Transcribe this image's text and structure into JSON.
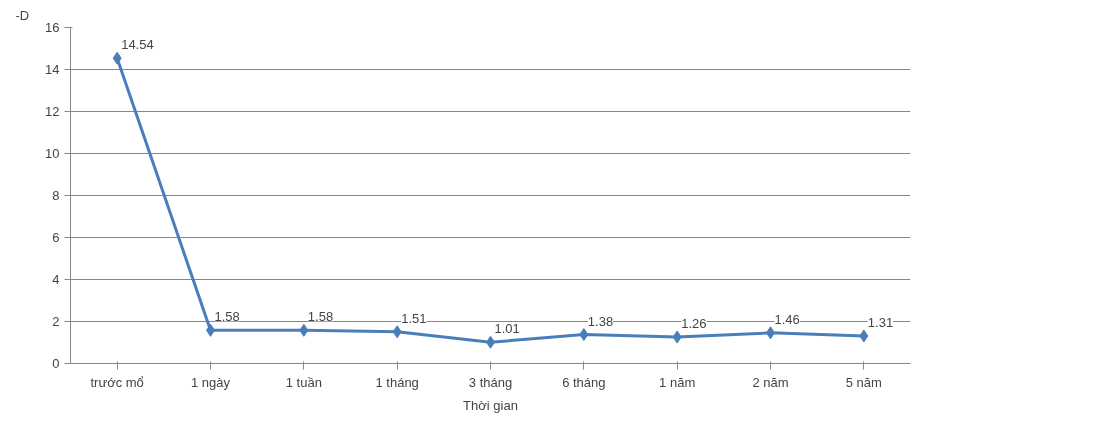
{
  "chart_data": {
    "type": "line",
    "ylabel": "-D",
    "xlabel": "Thời gian",
    "categories": [
      "trước mổ",
      "1 ngày",
      "1 tuần",
      "1 tháng",
      "3 tháng",
      "6 tháng",
      "1 năm",
      "2 năm",
      "5 năm"
    ],
    "series": [
      {
        "color": "#4a7ebb",
        "values": [
          14.54,
          1.58,
          1.58,
          1.51,
          1.01,
          1.38,
          1.26,
          1.46,
          1.31
        ]
      }
    ],
    "ylim": [
      0,
      16
    ],
    "yticks": [
      0,
      2,
      4,
      6,
      8,
      10,
      12,
      14,
      16
    ],
    "grid": "y",
    "marker": "diamond",
    "data_labels": true
  }
}
